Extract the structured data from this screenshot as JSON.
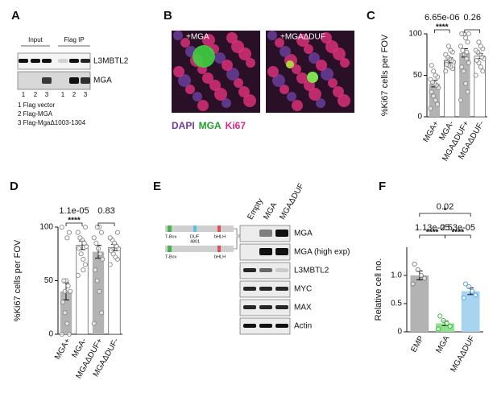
{
  "panel_a": {
    "label": "A",
    "input": "Input",
    "flag_ip": "Flag IP",
    "rows": [
      "L3MBTL2",
      "MGA"
    ],
    "lanes": [
      "1",
      "2",
      "3",
      "1",
      "2",
      "3"
    ],
    "legend": [
      "1 Flag vector",
      "2 Flag-MGA",
      "3 Flag-MgaΔ1003-1304"
    ]
  },
  "panel_b": {
    "label": "B",
    "images": [
      "+MGA",
      "+MGAΔDUF"
    ],
    "stains": [
      {
        "name": "DAPI",
        "color": "#6a3d9a"
      },
      {
        "name": "MGA",
        "color": "#22a02c"
      },
      {
        "name": "Ki67",
        "color": "#d6278a"
      }
    ]
  },
  "panel_e": {
    "label": "E",
    "lanes": [
      "Empty",
      "MGA",
      "MGAΔDUF"
    ],
    "rows": [
      "MGA",
      "MGA (high exp)",
      "L3MBTL2",
      "MYC",
      "MAX",
      "Actin"
    ],
    "domains": [
      "T-Box",
      "DUF",
      "4801",
      "bHLH"
    ],
    "domains_delta": [
      "T-Box",
      "bHLH"
    ]
  },
  "chart_data": [
    {
      "type": "bar",
      "label": "C",
      "ylabel": "%Ki67 cells per FOV",
      "categories": [
        "MGA+",
        "MGA-",
        "MGAΔDUF+",
        "MGAΔDUF-"
      ],
      "values": [
        40,
        68,
        77,
        73
      ],
      "errors": [
        4,
        3,
        5,
        3
      ],
      "colors": [
        "#b3b3b3",
        "#ffffff",
        "#b3b3b3",
        "#ffffff"
      ],
      "point_colors": [
        "#888888",
        "#888888",
        "#888888",
        "#888888"
      ],
      "points": [
        [
          10,
          15,
          20,
          25,
          30,
          35,
          38,
          40,
          42,
          45,
          48,
          50,
          55,
          62
        ],
        [
          55,
          58,
          60,
          62,
          65,
          66,
          68,
          70,
          72,
          75,
          78,
          80,
          85,
          63
        ],
        [
          20,
          30,
          40,
          55,
          60,
          65,
          70,
          75,
          80,
          85,
          90,
          95,
          100,
          100,
          100,
          78
        ],
        [
          50,
          55,
          60,
          65,
          68,
          70,
          72,
          75,
          78,
          80,
          82,
          85,
          90
        ]
      ],
      "ylim": [
        0,
        100
      ],
      "yticks": [
        0,
        50,
        100
      ],
      "annotations": [
        {
          "text": "6.65e-06",
          "stars": "****"
        },
        {
          "text": "0.26"
        }
      ]
    },
    {
      "type": "bar",
      "label": "D",
      "ylabel": "%Ki67 cells per FOV",
      "categories": [
        "MGA+",
        "MGA-",
        "MGAΔDUF+",
        "MGAΔDUF-"
      ],
      "values": [
        40,
        83,
        77,
        81
      ],
      "errors": [
        8,
        4,
        6,
        3
      ],
      "colors": [
        "#b3b3b3",
        "#ffffff",
        "#b3b3b3",
        "#ffffff"
      ],
      "point_colors": [
        "#888888",
        "#888888",
        "#888888",
        "#888888"
      ],
      "points": [
        [
          0,
          0,
          10,
          20,
          30,
          40,
          45,
          50,
          50,
          100,
          95,
          90,
          40
        ],
        [
          55,
          65,
          70,
          75,
          80,
          82,
          85,
          88,
          90,
          95,
          100,
          60
        ],
        [
          10,
          20,
          40,
          50,
          60,
          70,
          75,
          80,
          85,
          90,
          95,
          100,
          100
        ],
        [
          65,
          70,
          72,
          75,
          78,
          80,
          82,
          85,
          88,
          90,
          95
        ]
      ],
      "ylim": [
        0,
        100
      ],
      "yticks": [
        0,
        50,
        100
      ],
      "annotations": [
        {
          "text": "1.1e-05",
          "stars": "****"
        },
        {
          "text": "0.83"
        }
      ]
    },
    {
      "type": "bar",
      "label": "F",
      "ylabel": "Relative cell no.",
      "categories": [
        "EMP",
        "MGA",
        "MGAΔDUF"
      ],
      "values": [
        1.0,
        0.15,
        0.72
      ],
      "errors": [
        0.08,
        0.04,
        0.06
      ],
      "colors": [
        "#b3b3b3",
        "#8fe08f",
        "#a8d4f0"
      ],
      "point_colors": [
        "#777777",
        "#2db82d",
        "#4aa3df"
      ],
      "points": [
        [
          0.85,
          0.95,
          1.0,
          1.1,
          1.2
        ],
        [
          0.05,
          0.1,
          0.15,
          0.2,
          0.28
        ],
        [
          0.6,
          0.65,
          0.72,
          0.8,
          0.85
        ]
      ],
      "ylim": [
        0,
        1.5
      ],
      "yticks": [
        0,
        0.5,
        {
          "value": 1,
          "label": "1.0"
        }
      ],
      "annotations": [
        {
          "text": "0.02",
          "stars": "*"
        },
        {
          "text": "1.13e-05",
          "stars": "****"
        },
        {
          "text": "2.53e-05",
          "stars": "****"
        }
      ]
    }
  ]
}
